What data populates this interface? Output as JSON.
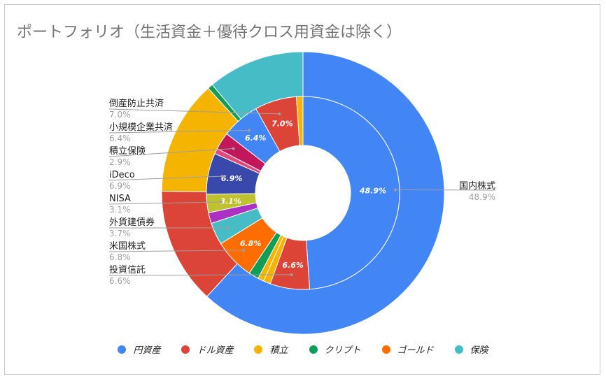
{
  "chart_data": {
    "type": "pie",
    "title": "ポートフォリオ（生活資金＋優待クロス用資金は除く）",
    "inner_ring": [
      {
        "label": "国内株式",
        "value": 48.9,
        "color": "#4285f4",
        "label_text": "48.9%"
      },
      {
        "label": "投資信託",
        "value": 6.6,
        "color": "#db4437",
        "label_text": "6.6%"
      },
      {
        "label": "",
        "value": 1.2,
        "color": "#f4b400",
        "label_text": ""
      },
      {
        "label": "",
        "value": 1.0,
        "color": "#f4b400",
        "label_text": ""
      },
      {
        "label": "",
        "value": 1.7,
        "color": "#0f9d58",
        "label_text": ""
      },
      {
        "label": "米国株式",
        "value": 6.8,
        "color": "#ff6d01",
        "label_text": "6.8%"
      },
      {
        "label": "外貨建債券",
        "value": 3.7,
        "color": "#46bdc6",
        "label_text": ""
      },
      {
        "label": "",
        "value": 1.8,
        "color": "#ab30c4",
        "label_text": ""
      },
      {
        "label": "NISA",
        "value": 3.1,
        "color": "#c0c12f",
        "label_text": "3.1%"
      },
      {
        "label": "iDeco",
        "value": 6.9,
        "color": "#3949ab",
        "label_text": "6.9%"
      },
      {
        "label": "",
        "value": 0.9,
        "color": "#e04a7a",
        "label_text": ""
      },
      {
        "label": "積立保険",
        "value": 2.9,
        "color": "#c2185b",
        "label_text": ""
      },
      {
        "label": "小規模企業共済",
        "value": 6.4,
        "color": "#4285f4",
        "label_text": "6.4%"
      },
      {
        "label": "倒産防止共済",
        "value": 7.0,
        "color": "#db4437",
        "label_text": "7.0%"
      },
      {
        "label": "",
        "value": 1.1,
        "color": "#f4b400",
        "label_text": ""
      }
    ],
    "outer_ring": [
      {
        "label": "円資産",
        "value": 61.9,
        "color": "#4285f4"
      },
      {
        "label": "ドル資産",
        "value": 13.3,
        "color": "#db4437"
      },
      {
        "label": "積立",
        "value": 13.1,
        "color": "#f4b400"
      },
      {
        "label": "クリプト",
        "value": 0.6,
        "color": "#0f9d58"
      },
      {
        "label": "ゴールド",
        "value": 0.0,
        "color": "#ff6d01"
      },
      {
        "label": "保険",
        "value": 11.1,
        "color": "#46bdc6"
      }
    ],
    "callouts": [
      {
        "name": "倒産防止共済",
        "pct": "7.0%",
        "slice": 13,
        "side": "left",
        "row": 0
      },
      {
        "name": "小規模企業共済",
        "pct": "6.4%",
        "slice": 12,
        "side": "left",
        "row": 1
      },
      {
        "name": "積立保険",
        "pct": "2.9%",
        "slice": 11,
        "side": "left",
        "row": 2
      },
      {
        "name": "iDeco",
        "pct": "6.9%",
        "slice": 9,
        "side": "left",
        "row": 3
      },
      {
        "name": "NISA",
        "pct": "3.1%",
        "slice": 8,
        "side": "left",
        "row": 4
      },
      {
        "name": "外貨建債券",
        "pct": "3.7%",
        "slice": 6,
        "side": "left",
        "row": 5
      },
      {
        "name": "米国株式",
        "pct": "6.8%",
        "slice": 5,
        "side": "left",
        "row": 6
      },
      {
        "name": "投資信託",
        "pct": "6.6%",
        "slice": 1,
        "side": "left",
        "row": 7
      },
      {
        "name": "国内株式",
        "pct": "48.9%",
        "slice": 0,
        "side": "right",
        "row": 0
      }
    ],
    "legend": [
      {
        "label": "円資産",
        "color": "#4285f4"
      },
      {
        "label": "ドル資産",
        "color": "#db4437"
      },
      {
        "label": "積立",
        "color": "#f4b400"
      },
      {
        "label": "クリプト",
        "color": "#0f9d58"
      },
      {
        "label": "ゴールド",
        "color": "#ff6d01"
      },
      {
        "label": "保険",
        "color": "#46bdc6"
      }
    ],
    "legend_position": "bottom"
  }
}
